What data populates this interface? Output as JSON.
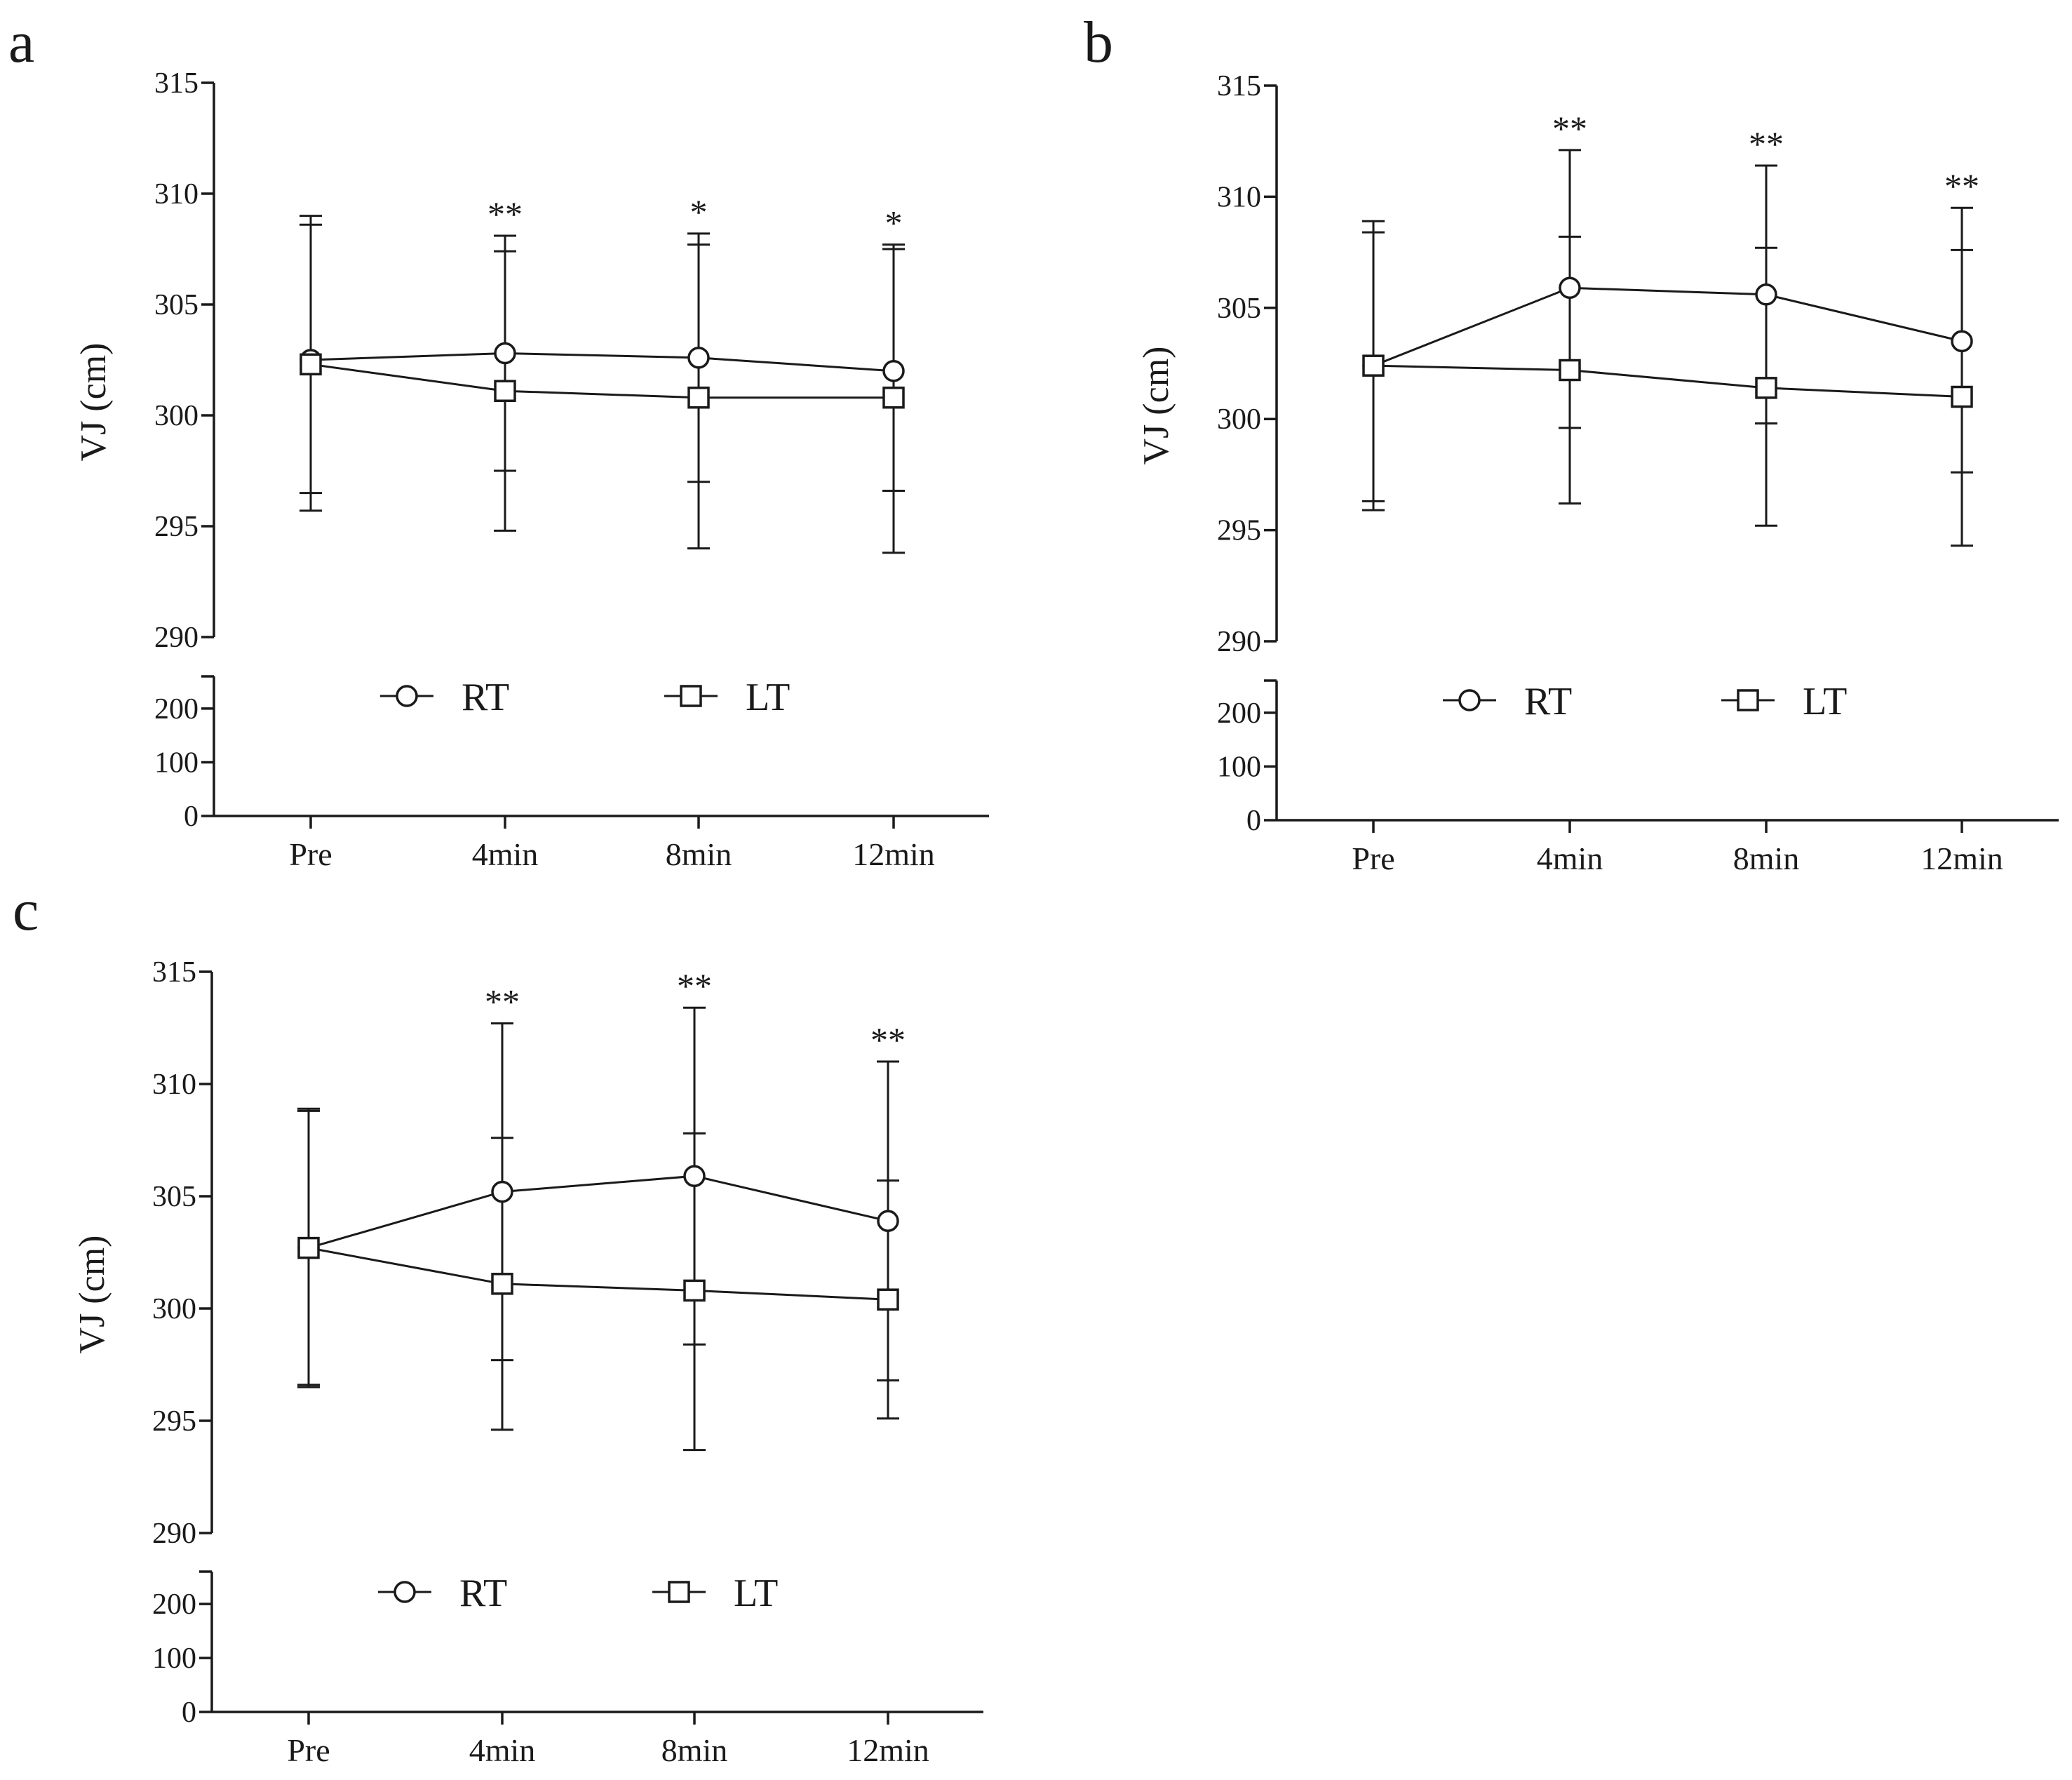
{
  "figure": {
    "charts_count": 3
  },
  "chart_data": [
    {
      "panel": "a",
      "type": "line",
      "ylabel": "VJ (cm)",
      "categories": [
        "Pre",
        "4min",
        "8min",
        "12min"
      ],
      "y_upper_ticks": [
        "290",
        "295",
        "300",
        "305",
        "310",
        "315"
      ],
      "y_lower_ticks": [
        "0",
        "100",
        "200"
      ],
      "ylim_upper": [
        290,
        315
      ],
      "ylim_lower": [
        0,
        260
      ],
      "legend": [
        "RT",
        "LT"
      ],
      "series": [
        {
          "name": "RT",
          "marker": "circle",
          "values": [
            302.5,
            302.8,
            302.6,
            302.0
          ],
          "err_upper": [
            309.0,
            308.1,
            308.2,
            307.7
          ],
          "err_lower": [
            296.5,
            297.5,
            297.0,
            296.6
          ]
        },
        {
          "name": "LT",
          "marker": "square",
          "values": [
            302.3,
            301.1,
            300.8,
            300.8
          ],
          "err_upper": [
            308.6,
            307.4,
            307.7,
            307.5
          ],
          "err_lower": [
            295.7,
            294.8,
            294.0,
            293.8
          ]
        }
      ],
      "significance": [
        "",
        "**",
        "*",
        "*"
      ]
    },
    {
      "panel": "b",
      "type": "line",
      "ylabel": "VJ (cm)",
      "categories": [
        "Pre",
        "4min",
        "8min",
        "12min"
      ],
      "y_upper_ticks": [
        "290",
        "295",
        "300",
        "305",
        "310",
        "315"
      ],
      "y_lower_ticks": [
        "0",
        "100",
        "200"
      ],
      "ylim_upper": [
        290,
        315
      ],
      "ylim_lower": [
        0,
        260
      ],
      "legend": [
        "RT",
        "LT"
      ],
      "series": [
        {
          "name": "RT",
          "marker": "circle",
          "values": [
            302.4,
            305.9,
            305.6,
            303.5
          ],
          "err_upper": [
            308.9,
            312.1,
            311.4,
            309.5
          ],
          "err_lower": [
            295.9,
            299.6,
            299.8,
            297.6
          ]
        },
        {
          "name": "LT",
          "marker": "square",
          "values": [
            302.4,
            302.2,
            301.4,
            301.0
          ],
          "err_upper": [
            308.4,
            308.2,
            307.7,
            307.6
          ],
          "err_lower": [
            296.3,
            296.2,
            295.2,
            294.3
          ]
        }
      ],
      "significance": [
        "",
        "**",
        "**",
        "**"
      ]
    },
    {
      "panel": "c",
      "type": "line",
      "ylabel": "VJ (cm)",
      "categories": [
        "Pre",
        "4min",
        "8min",
        "12min"
      ],
      "y_upper_ticks": [
        "290",
        "295",
        "300",
        "305",
        "310",
        "315"
      ],
      "y_lower_ticks": [
        "0",
        "100",
        "200"
      ],
      "ylim_upper": [
        290,
        315
      ],
      "ylim_lower": [
        0,
        260
      ],
      "legend": [
        "RT",
        "LT"
      ],
      "series": [
        {
          "name": "RT",
          "marker": "circle",
          "values": [
            302.7,
            305.2,
            305.9,
            303.9
          ],
          "err_upper": [
            308.9,
            312.7,
            313.4,
            311.0
          ],
          "err_lower": [
            296.5,
            297.7,
            298.4,
            296.8
          ]
        },
        {
          "name": "LT",
          "marker": "square",
          "values": [
            302.7,
            301.1,
            300.8,
            300.4
          ],
          "err_upper": [
            308.8,
            307.6,
            307.8,
            305.7
          ],
          "err_lower": [
            296.6,
            294.6,
            293.7,
            295.1
          ]
        }
      ],
      "significance": [
        "",
        "**",
        "**",
        "**"
      ]
    }
  ]
}
